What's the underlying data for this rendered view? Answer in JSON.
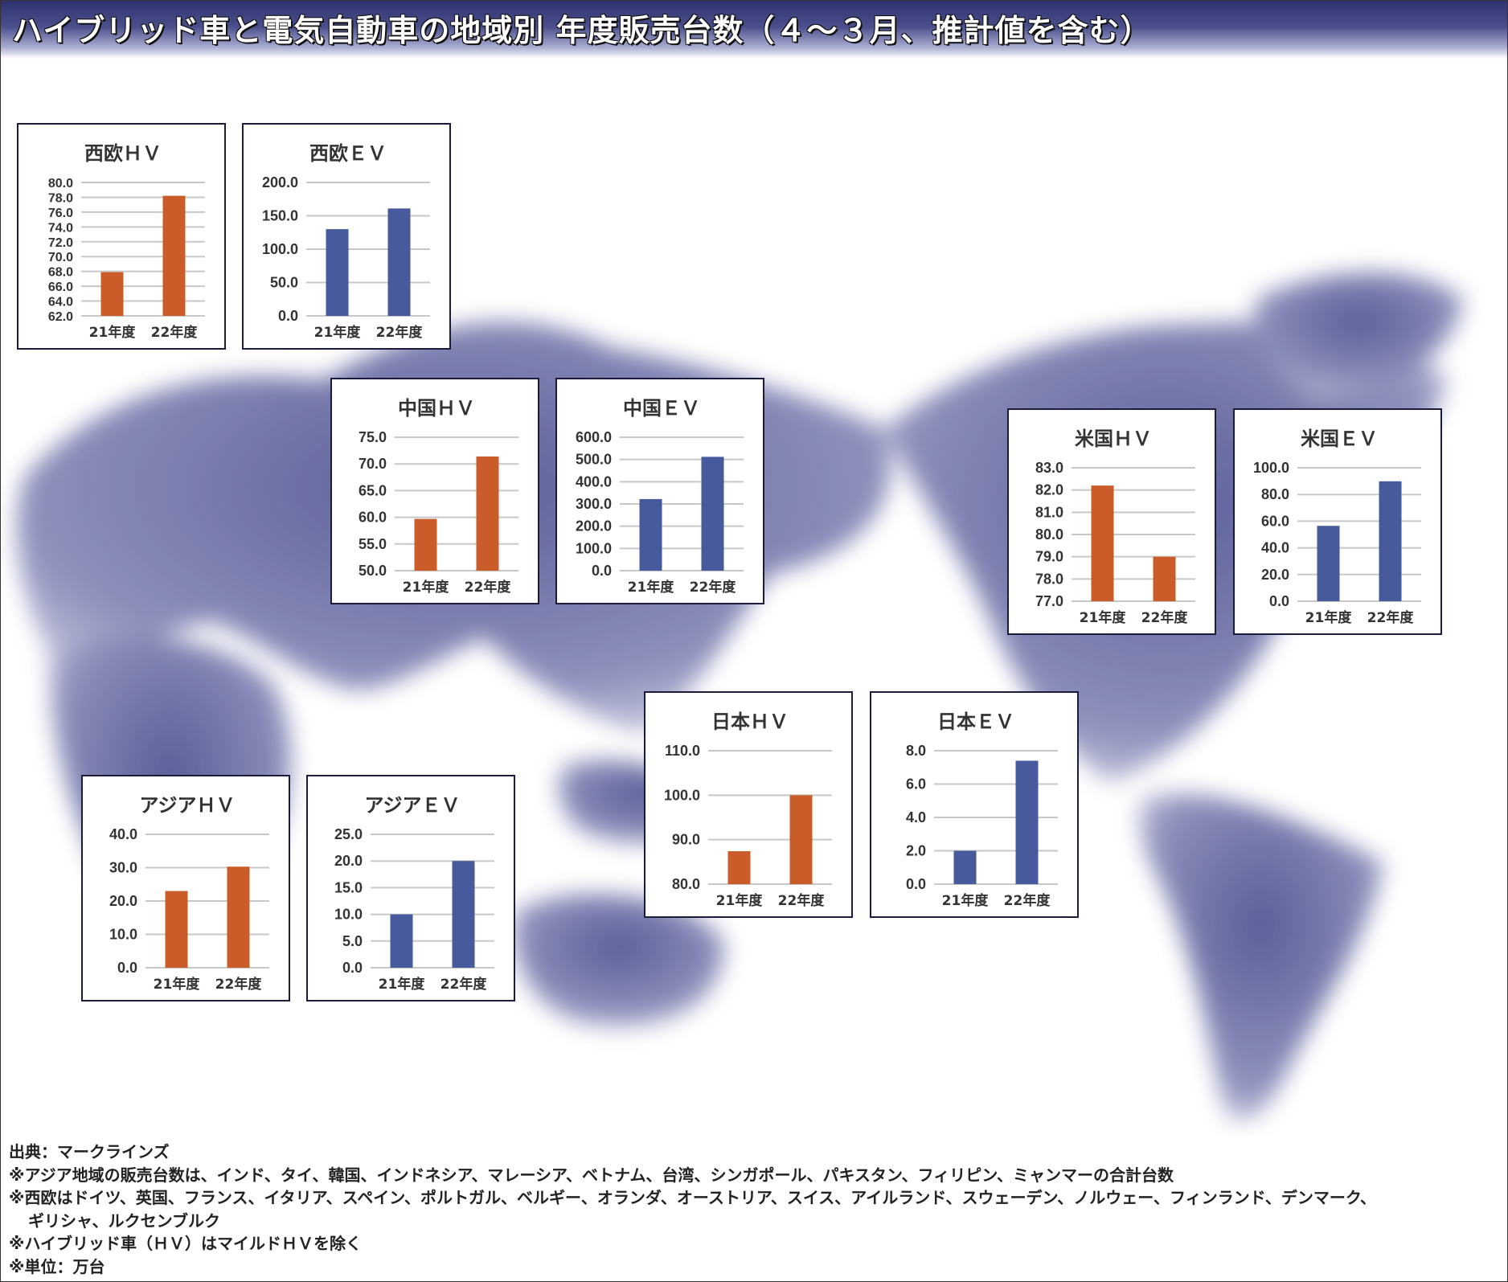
{
  "title": "ハイブリッド車と電気自動車の地域別 年度販売台数（４～３月、推計値を含む）",
  "colors": {
    "hv": "#c95c28",
    "ev": "#465a9c",
    "grid": "#c8c8c8",
    "map": "#4b4f8e"
  },
  "chart_data": [
    {
      "id": "weu-hv",
      "type": "bar",
      "title": "西欧ＨＶ",
      "categories": [
        "21年度",
        "22年度"
      ],
      "values": [
        67.9,
        78.2
      ],
      "ylim": [
        62,
        80
      ],
      "ticks": [
        "62.0",
        "64.0",
        "66.0",
        "68.0",
        "70.0",
        "72.0",
        "74.0",
        "76.0",
        "78.0",
        "80.0"
      ],
      "series": "hv"
    },
    {
      "id": "weu-ev",
      "type": "bar",
      "title": "西欧ＥＶ",
      "categories": [
        "21年度",
        "22年度"
      ],
      "values": [
        130,
        161
      ],
      "ylim": [
        0,
        200
      ],
      "ticks": [
        "0.0",
        "50.0",
        "100.0",
        "150.0",
        "200.0"
      ],
      "series": "ev"
    },
    {
      "id": "cn-hv",
      "type": "bar",
      "title": "中国ＨＶ",
      "categories": [
        "21年度",
        "22年度"
      ],
      "values": [
        59.7,
        71.4
      ],
      "ylim": [
        50,
        75
      ],
      "ticks": [
        "50.0",
        "55.0",
        "60.0",
        "65.0",
        "70.0",
        "75.0"
      ],
      "series": "hv"
    },
    {
      "id": "cn-ev",
      "type": "bar",
      "title": "中国ＥＶ",
      "categories": [
        "21年度",
        "22年度"
      ],
      "values": [
        322,
        512
      ],
      "ylim": [
        0,
        600
      ],
      "ticks": [
        "0.0",
        "100.0",
        "200.0",
        "300.0",
        "400.0",
        "500.0",
        "600.0"
      ],
      "series": "ev"
    },
    {
      "id": "us-hv",
      "type": "bar",
      "title": "米国ＨＶ",
      "categories": [
        "21年度",
        "22年度"
      ],
      "values": [
        82.2,
        79.0
      ],
      "ylim": [
        77,
        83
      ],
      "ticks": [
        "77.0",
        "78.0",
        "79.0",
        "80.0",
        "81.0",
        "82.0",
        "83.0"
      ],
      "series": "hv"
    },
    {
      "id": "us-ev",
      "type": "bar",
      "title": "米国ＥＶ",
      "categories": [
        "21年度",
        "22年度"
      ],
      "values": [
        56.5,
        89.9
      ],
      "ylim": [
        0,
        100
      ],
      "ticks": [
        "0.0",
        "20.0",
        "40.0",
        "60.0",
        "80.0",
        "100.0"
      ],
      "series": "ev"
    },
    {
      "id": "jp-hv",
      "type": "bar",
      "title": "日本ＨＶ",
      "categories": [
        "21年度",
        "22年度"
      ],
      "values": [
        87.4,
        100.0
      ],
      "ylim": [
        80,
        110
      ],
      "ticks": [
        "80.0",
        "90.0",
        "100.0",
        "110.0"
      ],
      "series": "hv"
    },
    {
      "id": "jp-ev",
      "type": "bar",
      "title": "日本ＥＶ",
      "categories": [
        "21年度",
        "22年度"
      ],
      "values": [
        2.0,
        7.4
      ],
      "ylim": [
        0,
        8
      ],
      "ticks": [
        "0.0",
        "2.0",
        "4.0",
        "6.0",
        "8.0"
      ],
      "series": "ev"
    },
    {
      "id": "asia-hv",
      "type": "bar",
      "title": "アジアＨＶ",
      "categories": [
        "21年度",
        "22年度"
      ],
      "values": [
        23.0,
        30.3
      ],
      "ylim": [
        0,
        40
      ],
      "ticks": [
        "0.0",
        "10.0",
        "20.0",
        "30.0",
        "40.0"
      ],
      "series": "hv"
    },
    {
      "id": "asia-ev",
      "type": "bar",
      "title": "アジアＥＶ",
      "categories": [
        "21年度",
        "22年度"
      ],
      "values": [
        10.0,
        20.0
      ],
      "ylim": [
        0,
        25
      ],
      "ticks": [
        "0.0",
        "5.0",
        "10.0",
        "15.0",
        "20.0",
        "25.0"
      ],
      "series": "ev"
    }
  ],
  "notes": {
    "source": "出典：マークラインズ",
    "asia": "※アジア地域の販売台数は、インド、タイ、韓国、インドネシア、マレーシア、ベトナム、台湾、シンガポール、パキスタン、フィリピン、ミャンマーの合計台数",
    "weu1": "※西欧はドイツ、英国、フランス、イタリア、スペイン、ポルトガル、ベルギー、オランダ、オーストリア、スイス、アイルランド、スウェーデン、ノルウェー、フィンランド、デンマーク、",
    "weu2": "ギリシャ、ルクセンブルク",
    "hv": "※ハイブリッド車（ＨＶ）はマイルドＨＶを除く",
    "unit": "※単位：万台"
  }
}
